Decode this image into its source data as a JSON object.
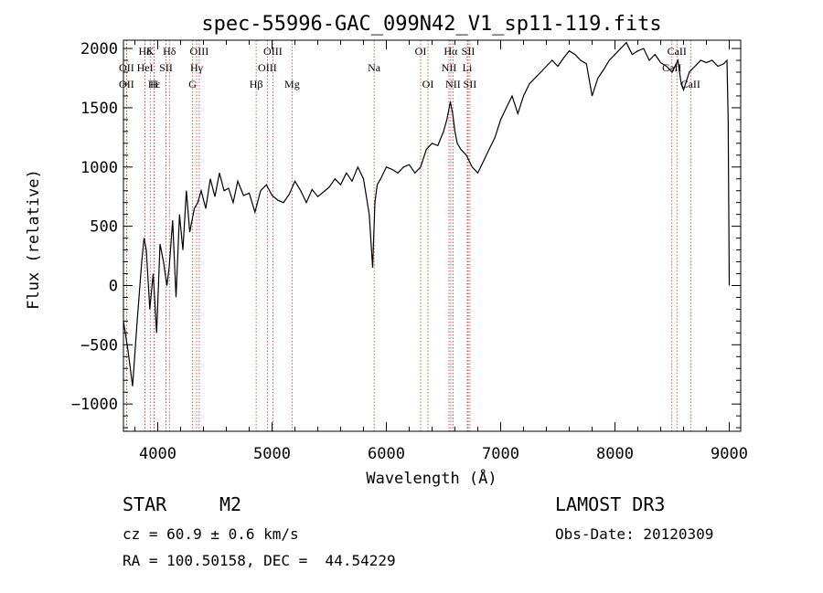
{
  "chart_data": {
    "type": "line",
    "title": "spec-55996-GAC_099N42_V1_sp11-119.fits",
    "xlabel": "Wavelength (Å)",
    "ylabel": "Flux (relative)",
    "xlim": [
      3700,
      9100
    ],
    "ylim": [
      -1230,
      2070
    ],
    "x_ticks": [
      "4000",
      "5000",
      "6000",
      "7000",
      "8000",
      "9000"
    ],
    "y_ticks": [
      "2000",
      "1500",
      "1000",
      "500",
      "0",
      "−500",
      "−1000"
    ],
    "x_tick_values": [
      4000,
      5000,
      6000,
      7000,
      8000,
      9000
    ],
    "y_tick_values": [
      2000,
      1500,
      1000,
      500,
      0,
      -500,
      -1000
    ],
    "series": [
      {
        "name": "spectrum",
        "x": [
          3700,
          3740,
          3780,
          3820,
          3860,
          3880,
          3900,
          3930,
          3960,
          3990,
          4020,
          4050,
          4080,
          4100,
          4130,
          4160,
          4190,
          4220,
          4250,
          4280,
          4320,
          4350,
          4380,
          4420,
          4460,
          4500,
          4540,
          4580,
          4620,
          4660,
          4700,
          4750,
          4800,
          4850,
          4900,
          4950,
          5000,
          5050,
          5100,
          5150,
          5200,
          5250,
          5300,
          5350,
          5400,
          5450,
          5500,
          5550,
          5600,
          5650,
          5700,
          5750,
          5800,
          5850,
          5880,
          5900,
          5920,
          5950,
          6000,
          6050,
          6100,
          6150,
          6200,
          6250,
          6300,
          6350,
          6400,
          6450,
          6500,
          6530,
          6560,
          6580,
          6600,
          6620,
          6650,
          6700,
          6750,
          6800,
          6850,
          6900,
          6950,
          7000,
          7050,
          7100,
          7150,
          7200,
          7250,
          7300,
          7350,
          7400,
          7450,
          7500,
          7550,
          7600,
          7650,
          7700,
          7750,
          7800,
          7850,
          7900,
          7950,
          8000,
          8050,
          8100,
          8150,
          8200,
          8250,
          8300,
          8350,
          8400,
          8450,
          8500,
          8550,
          8580,
          8600,
          8650,
          8700,
          8750,
          8800,
          8850,
          8900,
          8950,
          8980,
          8990,
          9000
        ],
        "y": [
          -300,
          -550,
          -850,
          -300,
          200,
          400,
          300,
          -200,
          100,
          -400,
          350,
          200,
          0,
          150,
          550,
          -100,
          600,
          300,
          800,
          450,
          650,
          700,
          800,
          650,
          900,
          750,
          950,
          800,
          820,
          700,
          880,
          760,
          780,
          620,
          800,
          850,
          760,
          720,
          700,
          770,
          880,
          800,
          700,
          810,
          750,
          790,
          830,
          900,
          850,
          950,
          880,
          1000,
          900,
          600,
          150,
          700,
          850,
          900,
          1000,
          980,
          950,
          1000,
          1020,
          950,
          1000,
          1150,
          1200,
          1180,
          1300,
          1400,
          1550,
          1450,
          1300,
          1200,
          1150,
          1100,
          1000,
          950,
          1050,
          1150,
          1250,
          1400,
          1500,
          1600,
          1450,
          1600,
          1700,
          1750,
          1800,
          1850,
          1900,
          1850,
          1920,
          1980,
          1950,
          1900,
          1870,
          1600,
          1750,
          1820,
          1900,
          1950,
          2000,
          2050,
          1950,
          1980,
          2000,
          1900,
          1950,
          1880,
          1850,
          1800,
          1900,
          1700,
          1650,
          1800,
          1850,
          1900,
          1880,
          1900,
          1850,
          1870,
          1900,
          1400,
          0
        ]
      }
    ],
    "spectral_lines": [
      {
        "label": "Hδ",
        "wavelength": 3889,
        "row": 0
      },
      {
        "label": "K",
        "wavelength": 3934,
        "row": 0
      },
      {
        "label": "Hδ",
        "wavelength": 4102,
        "row": 0
      },
      {
        "label": "OIII",
        "wavelength": 4363,
        "row": 0
      },
      {
        "label": "OIII",
        "wavelength": 5007,
        "row": 0
      },
      {
        "label": "OI",
        "wavelength": 6300,
        "row": 0
      },
      {
        "label": "Hα",
        "wavelength": 6563,
        "row": 0
      },
      {
        "label": "SII",
        "wavelength": 6716,
        "row": 0
      },
      {
        "label": "CaII",
        "wavelength": 8542,
        "row": 0
      },
      {
        "label": "OII",
        "wavelength": 3727,
        "row": 1
      },
      {
        "label": "HeI",
        "wavelength": 3889,
        "row": 1
      },
      {
        "label": "SII",
        "wavelength": 4072,
        "row": 1
      },
      {
        "label": "Hγ",
        "wavelength": 4340,
        "row": 1
      },
      {
        "label": "OIII",
        "wavelength": 4959,
        "row": 1
      },
      {
        "label": "Na",
        "wavelength": 5893,
        "row": 1
      },
      {
        "label": "NII",
        "wavelength": 6548,
        "row": 1
      },
      {
        "label": "Li",
        "wavelength": 6708,
        "row": 1
      },
      {
        "label": "CaII",
        "wavelength": 8498,
        "row": 1
      },
      {
        "label": "OII",
        "wavelength": 3727,
        "row": 2
      },
      {
        "label": "Hε",
        "wavelength": 3970,
        "row": 2
      },
      {
        "label": "H",
        "wavelength": 3968,
        "row": 2
      },
      {
        "label": "G",
        "wavelength": 4305,
        "row": 2
      },
      {
        "label": "Hβ",
        "wavelength": 4861,
        "row": 2
      },
      {
        "label": "Mg",
        "wavelength": 5175,
        "row": 2
      },
      {
        "label": "OI",
        "wavelength": 6364,
        "row": 2
      },
      {
        "label": "NII",
        "wavelength": 6583,
        "row": 2
      },
      {
        "label": "SII",
        "wavelength": 6731,
        "row": 2
      },
      {
        "label": "CaII",
        "wavelength": 8662,
        "row": 2
      }
    ],
    "line_colors": {
      "spectrum": "#000000",
      "marker": "#c0392b"
    }
  },
  "info": {
    "object_class": "STAR",
    "subclass": "M2",
    "survey": "LAMOST DR3",
    "cz": "cz = 60.9 ± 0.6 km/s",
    "obs_date": "Obs-Date: 20120309",
    "coords": "RA = 100.50158, DEC =  44.54229"
  }
}
